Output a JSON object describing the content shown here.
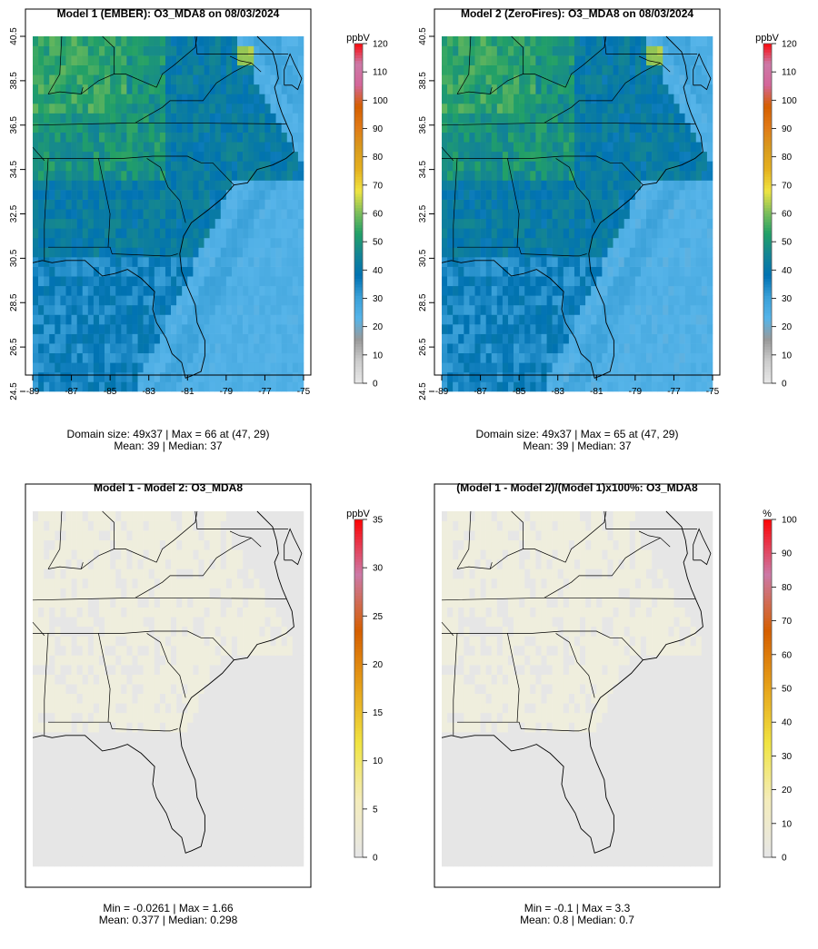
{
  "colors": {
    "ozone_scale": [
      "#e6e6e6",
      "#cccccc",
      "#999999",
      "#56b4e9",
      "#3aa0d8",
      "#0072b2",
      "#138494",
      "#22a067",
      "#7fbf5a",
      "#f0e442",
      "#e5b11f",
      "#d99b1d",
      "#e07a16",
      "#d55e00",
      "#d4669a",
      "#cc79a7",
      "#ff0000"
    ],
    "diff_scale": [
      "#e6e6e6",
      "#f4ecbb",
      "#f0e442",
      "#e6a21a",
      "#d55e00",
      "#cc79a7",
      "#ff0000"
    ],
    "ocean_base": "#5cb2e6",
    "diff_background": "#e6e6e6",
    "boundary": "#000000"
  },
  "panels": [
    {
      "title": "Model 1 (EMBER): O3_MDA8 on 08/03/2024",
      "caption_line1": "Domain size: 49x37 | Max = 66 at (47, 29)",
      "caption_line2": "Mean: 39 |  Median: 37"
    },
    {
      "title": "Model 2 (ZeroFires): O3_MDA8 on 08/03/2024",
      "caption_line1": "Domain size: 49x37 | Max = 65 at (47, 29)",
      "caption_line2": "Mean: 39 |  Median: 37"
    },
    {
      "title": "Model 1 - Model 2: O3_MDA8",
      "caption_line1": "Min = -0.0261 | Max = 1.66",
      "caption_line2": "Mean: 0.377 |  Median: 0.298"
    },
    {
      "title": "(Model 1 - Model 2)/(Model 1)x100%: O3_MDA8",
      "caption_line1": "Min = -0.1 | Max = 3.3",
      "caption_line2": "Mean: 0.8 |  Median: 0.7"
    }
  ],
  "chart_data": [
    {
      "type": "heatmap",
      "title": "Model 1 (EMBER): O3_MDA8 on 08/03/2024",
      "grid_size": "49x37",
      "x_ticks": [
        "-89",
        "-87",
        "-85",
        "-83",
        "-81",
        "-79",
        "-77",
        "-75"
      ],
      "y_ticks": [
        "24.5",
        "26.5",
        "28.5",
        "30.5",
        "32.5",
        "34.5",
        "36.5",
        "38.5",
        "40.5"
      ],
      "xlim": [
        -89,
        -75
      ],
      "ylim": [
        24.5,
        40.5
      ],
      "colorbar": {
        "unit": "ppbV",
        "range": [
          0,
          120
        ],
        "ticks": [
          "0",
          "10",
          "20",
          "30",
          "40",
          "50",
          "60",
          "70",
          "80",
          "90",
          "100",
          "110",
          "120"
        ]
      },
      "stats": {
        "max": 66,
        "max_at": [
          47,
          29
        ],
        "mean": 39,
        "median": 37
      }
    },
    {
      "type": "heatmap",
      "title": "Model 2 (ZeroFires): O3_MDA8 on 08/03/2024",
      "grid_size": "49x37",
      "x_ticks": [
        "-89",
        "-87",
        "-85",
        "-83",
        "-81",
        "-79",
        "-77",
        "-75"
      ],
      "y_ticks": [
        "24.5",
        "26.5",
        "28.5",
        "30.5",
        "32.5",
        "34.5",
        "36.5",
        "38.5",
        "40.5"
      ],
      "xlim": [
        -89,
        -75
      ],
      "ylim": [
        24.5,
        40.5
      ],
      "colorbar": {
        "unit": "ppbV",
        "range": [
          0,
          120
        ],
        "ticks": [
          "0",
          "10",
          "20",
          "30",
          "40",
          "50",
          "60",
          "70",
          "80",
          "90",
          "100",
          "110",
          "120"
        ]
      },
      "stats": {
        "max": 65,
        "max_at": [
          47,
          29
        ],
        "mean": 39,
        "median": 37
      }
    },
    {
      "type": "heatmap",
      "title": "Model 1 - Model 2: O3_MDA8",
      "colorbar": {
        "unit": "ppbV",
        "range": [
          0,
          35
        ],
        "ticks": [
          "0",
          "5",
          "10",
          "15",
          "20",
          "25",
          "30",
          "35"
        ]
      },
      "stats": {
        "min": -0.0261,
        "max": 1.66,
        "mean": 0.377,
        "median": 0.298
      }
    },
    {
      "type": "heatmap",
      "title": "(Model 1 - Model 2)/(Model 1)x100%: O3_MDA8",
      "colorbar": {
        "unit": "%",
        "range": [
          0,
          100
        ],
        "ticks": [
          "0",
          "10",
          "20",
          "30",
          "40",
          "50",
          "60",
          "70",
          "80",
          "90",
          "100"
        ]
      },
      "stats": {
        "min": -0.1,
        "max": 3.3,
        "mean": 0.8,
        "median": 0.7
      }
    }
  ]
}
